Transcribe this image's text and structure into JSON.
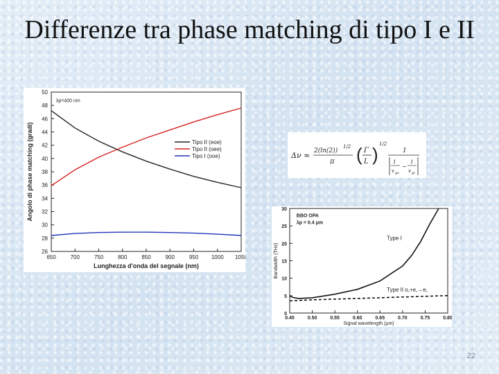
{
  "slide": {
    "title": "Differenze tra phase matching di tipo I e II",
    "page_number": "22"
  },
  "formula": {
    "lhs": "Δν ≈",
    "frac1_num": "2(ln(2))",
    "frac1_num_exp": "1/2",
    "frac1_den": "π",
    "frac2_num": "Γ",
    "frac2_den": "L",
    "paren_exp": "1/2",
    "frac3_num": "1",
    "inner_num1": "1",
    "inner_den1": "v",
    "inner_den1_sub": "gs",
    "inner_num2": "1",
    "inner_den2": "v",
    "inner_den2_sub": "gi",
    "minus": "−"
  },
  "chart_data": [
    {
      "type": "line",
      "xlabel": "Lunghezza d'onda del segnale (nm)",
      "ylabel": "Angolo di phase matching (gradi)",
      "xlim": [
        650,
        1050
      ],
      "ylim": [
        26,
        50
      ],
      "xticks": [
        650,
        700,
        750,
        800,
        850,
        900,
        950,
        1000,
        1050
      ],
      "yticks": [
        26,
        28,
        30,
        32,
        34,
        36,
        38,
        40,
        42,
        44,
        46,
        48,
        50
      ],
      "annotation": "λp=400 nm",
      "annotation_pos": {
        "x": 660,
        "y": 48.5
      },
      "legend_position": "right",
      "series": [
        {
          "name": "Tipo II (eoe)",
          "color": "#222222",
          "x": [
            650,
            700,
            750,
            800,
            850,
            900,
            950,
            1000,
            1050
          ],
          "y": [
            47.2,
            44.6,
            42.6,
            41.0,
            39.6,
            38.4,
            37.3,
            36.4,
            35.6
          ]
        },
        {
          "name": "Tipo II (oee)",
          "color": "#d42020",
          "x": [
            650,
            700,
            750,
            800,
            850,
            900,
            950,
            1000,
            1050
          ],
          "y": [
            35.9,
            38.3,
            40.2,
            41.7,
            43.1,
            44.3,
            45.5,
            46.6,
            47.6
          ]
        },
        {
          "name": "Tipo I (ooe)",
          "color": "#2233bb",
          "x": [
            650,
            700,
            750,
            800,
            850,
            900,
            950,
            1000,
            1050
          ],
          "y": [
            28.4,
            28.7,
            28.85,
            28.9,
            28.9,
            28.85,
            28.75,
            28.6,
            28.4
          ]
        }
      ]
    },
    {
      "type": "line",
      "xlabel": "Signal wavelength (μm)",
      "ylabel": "Bandwidth (THz)",
      "xlim": [
        0.45,
        0.8
      ],
      "ylim": [
        0,
        30
      ],
      "xticks": [
        "0.45",
        "0.50",
        "0.55",
        "0.60",
        "0.65",
        "0.70",
        "0.75",
        "0.80"
      ],
      "yticks": [
        0,
        5,
        10,
        15,
        20,
        25,
        30
      ],
      "annotation_title": "BBO OPA",
      "annotation_pump": "λp = 0.4 μm",
      "annotation_pos": {
        "x": 0.465,
        "y": 27.5
      },
      "series": [
        {
          "name": "Type I",
          "color": "#111111",
          "dash": false,
          "x": [
            0.45,
            0.46,
            0.47,
            0.5,
            0.55,
            0.6,
            0.65,
            0.7,
            0.72,
            0.74,
            0.76,
            0.78
          ],
          "y": [
            4.8,
            4.4,
            4.2,
            4.4,
            5.4,
            6.8,
            9.2,
            13.5,
            16.5,
            20.5,
            25.5,
            30
          ],
          "label_pos": {
            "x": 0.665,
            "y": 21
          }
        },
        {
          "name": "Type II o,+e,→e,",
          "color": "#111111",
          "dash": true,
          "x": [
            0.45,
            0.5,
            0.55,
            0.6,
            0.65,
            0.7,
            0.75,
            0.8
          ],
          "y": [
            3.5,
            3.8,
            4.0,
            4.2,
            4.4,
            4.6,
            4.8,
            5.0
          ],
          "label_pos": {
            "x": 0.665,
            "y": 6.2
          }
        }
      ]
    }
  ]
}
